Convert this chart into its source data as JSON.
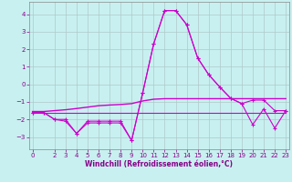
{
  "xlabel": "Windchill (Refroidissement éolien,°C)",
  "background_color": "#c8f0f0",
  "grid_color": "#b0c8c8",
  "line_color": "#cc00cc",
  "x": [
    0,
    1,
    2,
    3,
    4,
    5,
    6,
    7,
    8,
    9,
    10,
    11,
    12,
    13,
    14,
    15,
    16,
    17,
    18,
    19,
    20,
    21,
    22,
    23
  ],
  "line1": [
    -1.6,
    -1.6,
    -2.0,
    -2.0,
    -2.8,
    -2.1,
    -2.1,
    -2.1,
    -2.1,
    -3.2,
    -0.5,
    2.3,
    4.2,
    4.2,
    3.4,
    1.5,
    0.55,
    -0.15,
    -0.8,
    -1.1,
    -0.9,
    -0.9,
    -1.5,
    -1.5
  ],
  "line2": [
    -1.6,
    -1.6,
    -2.0,
    -2.1,
    -2.8,
    -2.2,
    -2.2,
    -2.2,
    -2.2,
    -3.2,
    -0.5,
    2.3,
    4.2,
    4.2,
    3.4,
    1.5,
    0.55,
    -0.15,
    -0.8,
    -1.1,
    -2.3,
    -1.4,
    -2.5,
    -1.5
  ],
  "line3": [
    -1.55,
    -1.55,
    -1.5,
    -1.45,
    -1.38,
    -1.3,
    -1.22,
    -1.18,
    -1.15,
    -1.1,
    -0.95,
    -0.85,
    -0.82,
    -0.82,
    -0.82,
    -0.82,
    -0.82,
    -0.82,
    -0.82,
    -0.82,
    -0.82,
    -0.82,
    -0.82,
    -0.82
  ],
  "line4": [
    -1.6,
    -1.6,
    -1.6,
    -1.6,
    -1.6,
    -1.6,
    -1.6,
    -1.6,
    -1.6,
    -1.6,
    -1.6,
    -1.6,
    -1.6,
    -1.6,
    -1.6,
    -1.6,
    -1.6,
    -1.6,
    -1.6,
    -1.6,
    -1.6,
    -1.6,
    -1.6,
    -1.6
  ],
  "ylim": [
    -3.7,
    4.7
  ],
  "xlim": [
    -0.3,
    23.3
  ],
  "yticks": [
    -3,
    -2,
    -1,
    0,
    1,
    2,
    3,
    4
  ],
  "xticks": [
    0,
    2,
    3,
    4,
    5,
    6,
    7,
    8,
    9,
    10,
    11,
    12,
    13,
    14,
    15,
    16,
    17,
    18,
    19,
    20,
    21,
    22,
    23
  ],
  "tick_fontsize": 5.0,
  "xlabel_fontsize": 5.5,
  "linewidth": 0.8,
  "markersize": 3.5,
  "spine_color": "#888888"
}
